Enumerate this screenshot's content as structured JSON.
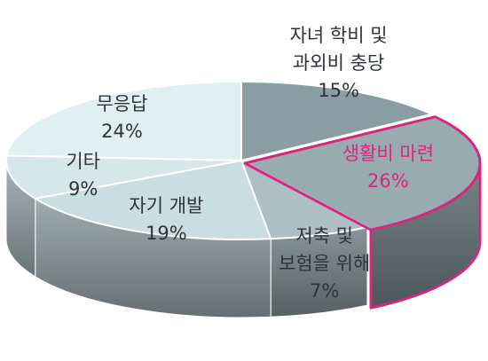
{
  "chart_data": {
    "type": "pie",
    "style": "3d",
    "slices": [
      {
        "label": "자녀 학비 및 과외비 충당",
        "label_lines": [
          "자녀 학비 및",
          "과외비 충당"
        ],
        "value": 15,
        "value_text": "15%",
        "color": "#8b9da4",
        "highlight": false
      },
      {
        "label": "생활비 마련",
        "label_lines": [
          "생활비 마련"
        ],
        "value": 26,
        "value_text": "26%",
        "color": "#98abb1",
        "highlight": true
      },
      {
        "label": "저축 및 보험을 위해",
        "label_lines": [
          "저축 및",
          "보험을 위해"
        ],
        "value": 7,
        "value_text": "7%",
        "color": "#adbfc4",
        "highlight": false
      },
      {
        "label": "자기 개발",
        "label_lines": [
          "자기 개발"
        ],
        "value": 19,
        "value_text": "19%",
        "color": "#c9dde2",
        "highlight": false
      },
      {
        "label": "기타",
        "label_lines": [
          "기타"
        ],
        "value": 9,
        "value_text": "9%",
        "color": "#d5e7ea",
        "highlight": false
      },
      {
        "label": "무응답",
        "label_lines": [
          "무응답"
        ],
        "value": 24,
        "value_text": "24%",
        "color": "#dfeff2",
        "highlight": false
      }
    ],
    "highlight_color": "#d8267f",
    "legend": "none"
  }
}
